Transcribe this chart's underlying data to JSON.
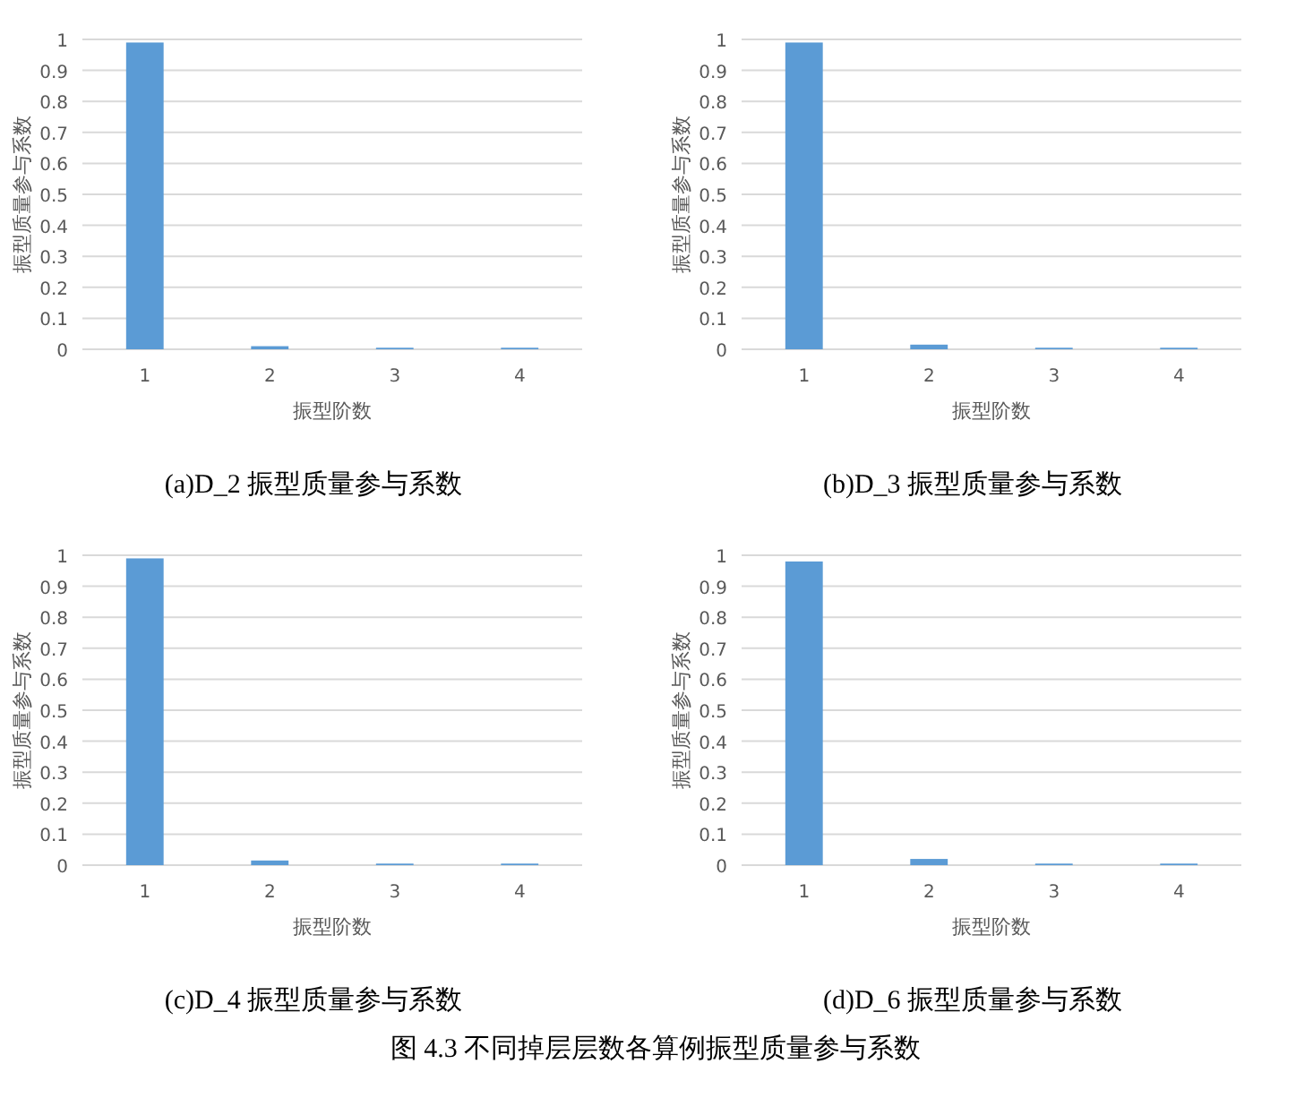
{
  "chart_data": [
    {
      "type": "bar",
      "title": "(a)D_2 振型质量参与系数",
      "xlabel": "振型阶数",
      "ylabel": "振型质量参与系数",
      "categories": [
        "1",
        "2",
        "3",
        "4"
      ],
      "values": [
        0.99,
        0.01,
        0.005,
        0.005
      ],
      "color": "#5b9bd5",
      "ylim": [
        0,
        1
      ],
      "yticks": [
        0,
        0.1,
        0.2,
        0.3,
        0.4,
        0.5,
        0.6,
        0.7,
        0.8,
        0.9,
        1
      ],
      "grid": "y"
    },
    {
      "type": "bar",
      "title": "(b)D_3 振型质量参与系数",
      "xlabel": "振型阶数",
      "ylabel": "振型质量参与系数",
      "categories": [
        "1",
        "2",
        "3",
        "4"
      ],
      "values": [
        0.99,
        0.015,
        0.005,
        0.005
      ],
      "color": "#5b9bd5",
      "ylim": [
        0,
        1
      ],
      "yticks": [
        0,
        0.1,
        0.2,
        0.3,
        0.4,
        0.5,
        0.6,
        0.7,
        0.8,
        0.9,
        1
      ],
      "grid": "y"
    },
    {
      "type": "bar",
      "title": "(c)D_4 振型质量参与系数",
      "xlabel": "振型阶数",
      "ylabel": "振型质量参与系数",
      "categories": [
        "1",
        "2",
        "3",
        "4"
      ],
      "values": [
        0.99,
        0.015,
        0.005,
        0.005
      ],
      "color": "#5b9bd5",
      "ylim": [
        0,
        1
      ],
      "yticks": [
        0,
        0.1,
        0.2,
        0.3,
        0.4,
        0.5,
        0.6,
        0.7,
        0.8,
        0.9,
        1
      ],
      "grid": "y"
    },
    {
      "type": "bar",
      "title": "(d)D_6 振型质量参与系数",
      "xlabel": "振型阶数",
      "ylabel": "振型质量参与系数",
      "categories": [
        "1",
        "2",
        "3",
        "4"
      ],
      "values": [
        0.98,
        0.02,
        0.005,
        0.005
      ],
      "color": "#5b9bd5",
      "ylim": [
        0,
        1
      ],
      "yticks": [
        0,
        0.1,
        0.2,
        0.3,
        0.4,
        0.5,
        0.6,
        0.7,
        0.8,
        0.9,
        1
      ],
      "grid": "y",
      "annotations": [
        "图 4.3 不同掉层层数各算例振型质量参与系数"
      ]
    }
  ]
}
